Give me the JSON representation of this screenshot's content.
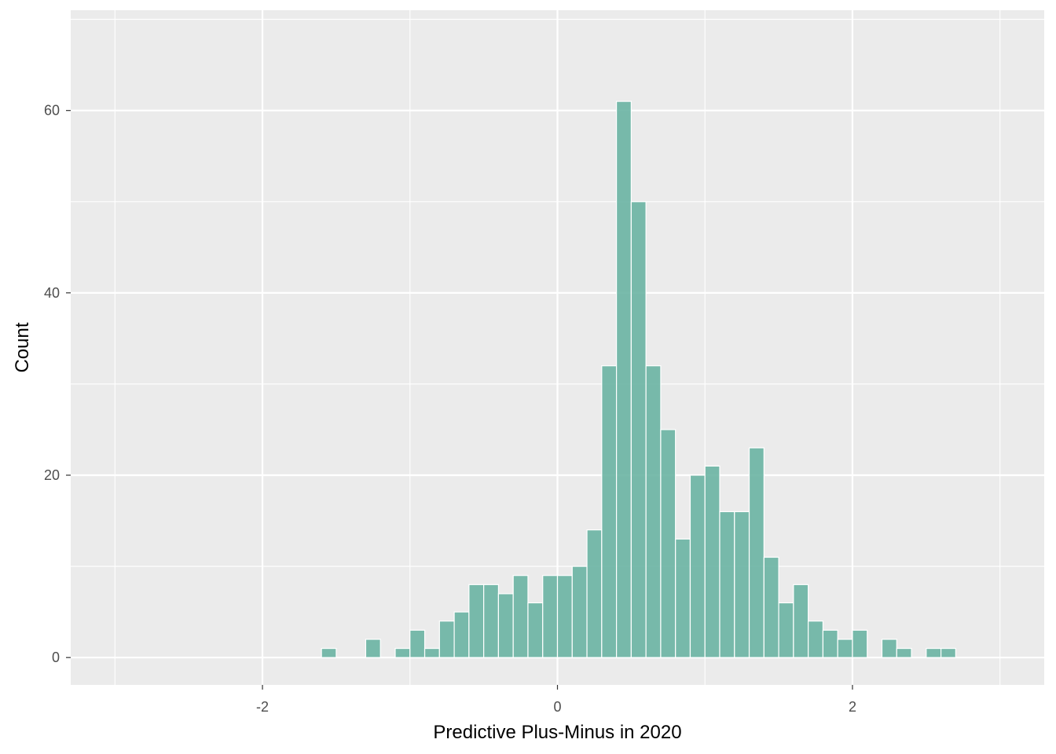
{
  "chart_data": {
    "type": "bar",
    "subtype": "histogram",
    "title": "",
    "xlabel": "Predictive Plus-Minus in 2020",
    "ylabel": "Count",
    "xlim": [
      -3.3,
      3.3
    ],
    "ylim": [
      -3.0,
      71
    ],
    "x_ticks": [
      -2,
      0,
      2
    ],
    "y_ticks": [
      0,
      20,
      40,
      60
    ],
    "x_tick_labels": [
      "-2",
      "0",
      "2"
    ],
    "y_tick_labels": [
      "0",
      "20",
      "40",
      "60"
    ],
    "bin_width": 0.1,
    "bin_start": -3.0,
    "bin_end": 3.0,
    "grid": true,
    "legend": "none",
    "bar_fill": "#66B2A0",
    "bar_opacity": 0.88,
    "bar_outline": "#ffffff",
    "panel_background": "#EBEBEB",
    "grid_color": "#ffffff",
    "values": [
      0,
      0,
      0,
      0,
      0,
      0,
      0,
      0,
      0,
      0,
      0,
      0,
      0,
      0,
      1,
      0,
      0,
      2,
      0,
      1,
      3,
      1,
      4,
      5,
      8,
      8,
      7,
      9,
      6,
      9,
      9,
      10,
      14,
      32,
      61,
      50,
      32,
      25,
      13,
      20,
      21,
      16,
      16,
      23,
      11,
      6,
      8,
      4,
      3,
      2,
      3,
      0,
      2,
      1,
      0,
      1,
      1,
      0,
      0,
      0
    ]
  }
}
